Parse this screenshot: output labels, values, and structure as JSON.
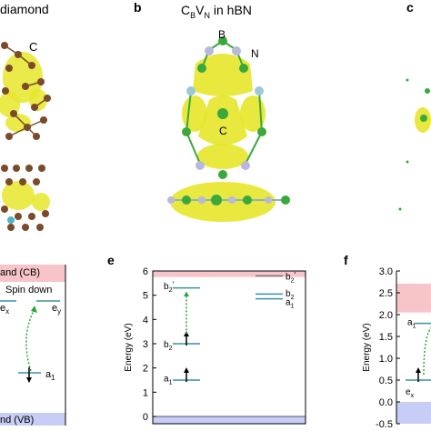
{
  "top_left": {
    "title": "diamond",
    "atom_label_c": "C"
  },
  "panel_b": {
    "label": "b",
    "title_main": "C",
    "sub1": "B",
    "mid": "V",
    "sub2": "N",
    "tail": " in hBN",
    "atom_b": "B",
    "atom_n": "N",
    "atom_c": "C"
  },
  "panel_c": {
    "label": "c"
  },
  "panel_d": {
    "cb": "and (CB)",
    "vb": "nd (VB)",
    "spin": "Spin down",
    "ex": "e",
    "ex_sub": "x",
    "ey": "e",
    "ey_sub": "y",
    "a1": "a",
    "a1_sub": "1"
  },
  "panel_e": {
    "label": "e"
  },
  "panel_f": {
    "label": "f"
  },
  "colors": {
    "cb_band": "#f7c5c8",
    "vb_band": "#c7cdf5",
    "level": "#3b8fa8",
    "arrow_green": "#2aa43e",
    "density": "#e6e62a",
    "carbon": "#7a4a2a",
    "boron": "#3aa83a",
    "nitrogen": "#b8b8d8"
  },
  "chart_data": [
    {
      "type": "line",
      "panel": "e",
      "ylabel": "Energy (eV)",
      "ylim": [
        -0.3,
        6.0
      ],
      "yticks": [
        "0",
        "1",
        "2",
        "3",
        "4",
        "5",
        "6"
      ],
      "cb_min": 5.75,
      "vb_max": 0.0,
      "levels": [
        {
          "label": "b2'",
          "energy": 5.3,
          "spin": "down"
        },
        {
          "label": "b2'",
          "energy": 5.8,
          "spin": "up"
        },
        {
          "label": "b2",
          "energy": 5.05,
          "spin": "up"
        },
        {
          "label": "a1",
          "energy": 4.85,
          "spin": "up"
        },
        {
          "label": "b2",
          "energy": 3.0,
          "spin": "down"
        },
        {
          "label": "a1",
          "energy": 1.5,
          "spin": "down"
        }
      ]
    },
    {
      "type": "line",
      "panel": "f",
      "ylabel": "Energy (eV)",
      "ylim": [
        -0.5,
        3.0
      ],
      "yticks": [
        "3.0",
        "2.5",
        "2.0",
        "1.5",
        "1.0",
        "0.5",
        "0.0",
        "-0.5"
      ],
      "levels": [
        {
          "label": "a1",
          "energy": 1.8
        },
        {
          "label": "ex",
          "energy": 0.5
        }
      ]
    }
  ]
}
